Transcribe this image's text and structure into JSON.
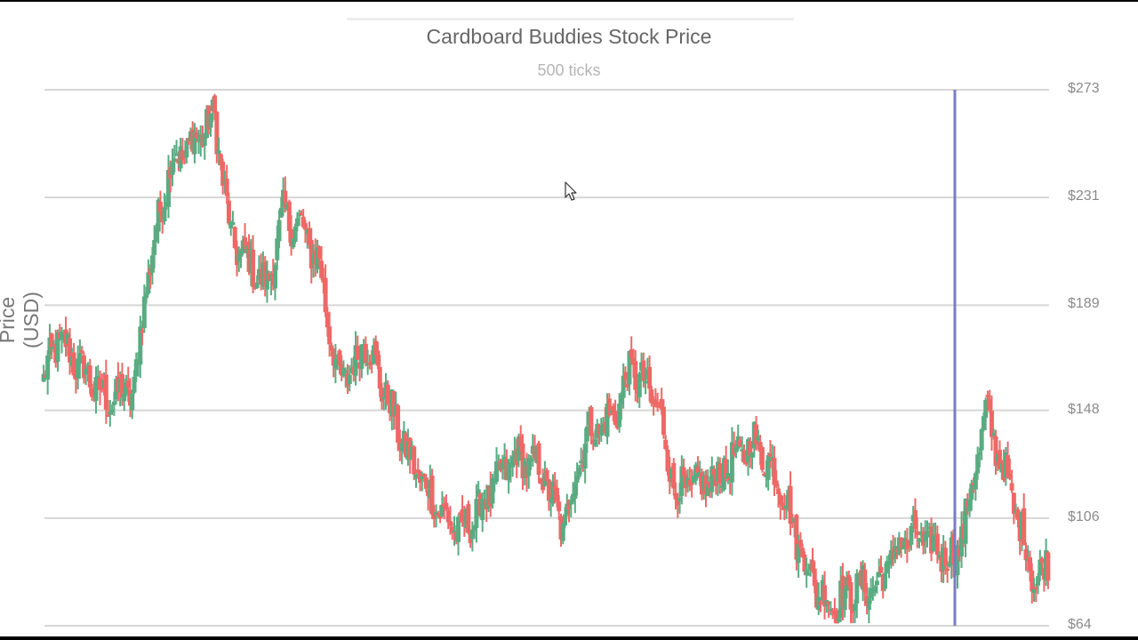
{
  "chart_data": {
    "type": "candlestick",
    "title": "Cardboard Buddies Stock Price",
    "subtitle": "500 ticks",
    "xlabel": "",
    "ylabel": "Price (USD)",
    "ylim": [
      64,
      273
    ],
    "y_ticks": [
      "$273",
      "$231",
      "$189",
      "$148",
      "$106",
      "$64"
    ],
    "y_tick_values": [
      273,
      231,
      189,
      148,
      106,
      64
    ],
    "grid": true,
    "y_axis_position": "right",
    "n_ticks": 500,
    "up_color": "#5aab82",
    "down_color": "#ee6866",
    "crosshair": {
      "color": "#7b7bc4",
      "tick_index": 453
    },
    "trajectory_anchors": [
      {
        "tick": 0,
        "close": 160
      },
      {
        "tick": 7,
        "close": 176
      },
      {
        "tick": 31,
        "close": 152
      },
      {
        "tick": 45,
        "close": 156
      },
      {
        "tick": 51,
        "close": 198
      },
      {
        "tick": 63,
        "close": 245
      },
      {
        "tick": 71,
        "close": 250
      },
      {
        "tick": 85,
        "close": 262
      },
      {
        "tick": 93,
        "close": 215
      },
      {
        "tick": 111,
        "close": 196
      },
      {
        "tick": 119,
        "close": 224
      },
      {
        "tick": 128,
        "close": 219
      },
      {
        "tick": 137,
        "close": 205
      },
      {
        "tick": 146,
        "close": 160
      },
      {
        "tick": 155,
        "close": 165
      },
      {
        "tick": 159,
        "close": 177
      },
      {
        "tick": 172,
        "close": 150
      },
      {
        "tick": 181,
        "close": 130
      },
      {
        "tick": 199,
        "close": 106
      },
      {
        "tick": 208,
        "close": 100
      },
      {
        "tick": 225,
        "close": 120
      },
      {
        "tick": 234,
        "close": 130
      },
      {
        "tick": 247,
        "close": 125
      },
      {
        "tick": 258,
        "close": 102
      },
      {
        "tick": 269,
        "close": 138
      },
      {
        "tick": 283,
        "close": 145
      },
      {
        "tick": 292,
        "close": 165
      },
      {
        "tick": 305,
        "close": 150
      },
      {
        "tick": 314,
        "close": 116
      },
      {
        "tick": 331,
        "close": 120
      },
      {
        "tick": 345,
        "close": 130
      },
      {
        "tick": 353,
        "close": 136
      },
      {
        "tick": 366,
        "close": 120
      },
      {
        "tick": 375,
        "close": 96
      },
      {
        "tick": 384,
        "close": 78
      },
      {
        "tick": 393,
        "close": 72
      },
      {
        "tick": 402,
        "close": 78
      },
      {
        "tick": 415,
        "close": 80
      },
      {
        "tick": 424,
        "close": 95
      },
      {
        "tick": 433,
        "close": 99
      },
      {
        "tick": 446,
        "close": 93
      },
      {
        "tick": 453,
        "close": 90
      },
      {
        "tick": 459,
        "close": 110
      },
      {
        "tick": 468,
        "close": 147
      },
      {
        "tick": 477,
        "close": 125
      },
      {
        "tick": 486,
        "close": 100
      },
      {
        "tick": 493,
        "close": 80
      },
      {
        "tick": 499,
        "close": 90
      }
    ],
    "approx_max": 273,
    "approx_min": 65
  },
  "page": {
    "title": "Cardboard Buddies Stock Price",
    "subtitle": "500 ticks",
    "y_axis_label": "Price (USD)"
  }
}
